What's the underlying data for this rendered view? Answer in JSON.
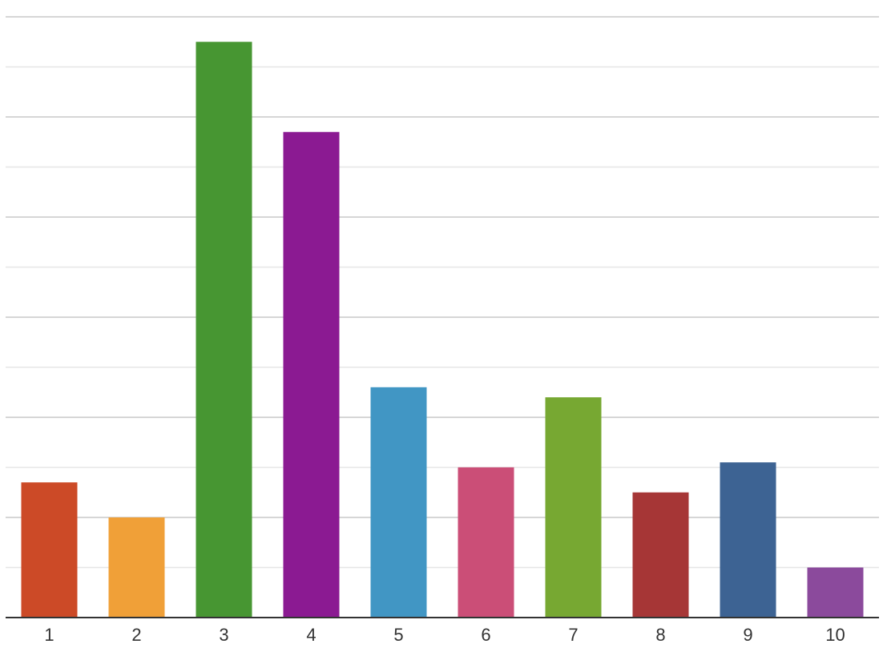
{
  "chart_data": {
    "type": "bar",
    "categories": [
      "1",
      "2",
      "3",
      "4",
      "5",
      "6",
      "7",
      "8",
      "9",
      "10"
    ],
    "values": [
      2.7,
      2,
      11.5,
      9.7,
      4.6,
      3,
      4.4,
      2.5,
      3.1,
      1
    ],
    "colors": [
      "#cc4a27",
      "#f0a038",
      "#479632",
      "#8b1a92",
      "#4196c4",
      "#cb4e77",
      "#77a832",
      "#a63636",
      "#3d6393",
      "#8b4a9c"
    ],
    "ylim": [
      0,
      12
    ],
    "yticks": [
      0,
      1,
      2,
      3,
      4,
      5,
      6,
      7,
      8,
      9,
      10,
      11,
      12
    ],
    "grid": true
  }
}
